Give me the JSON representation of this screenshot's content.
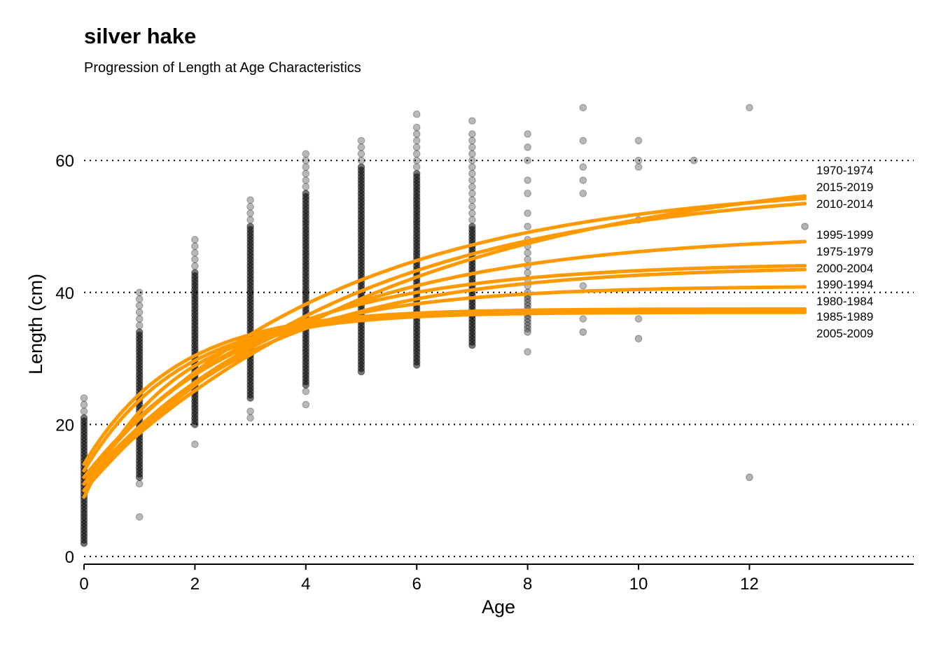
{
  "chart_data": {
    "type": "scatter",
    "title": "silver hake",
    "subtitle": "Progression of Length at Age Characteristics",
    "xlabel": "Age",
    "ylabel": "Length (cm)",
    "xlim": [
      0,
      15
    ],
    "ylim": [
      0,
      70
    ],
    "xticks": [
      0,
      2,
      4,
      6,
      8,
      10,
      12
    ],
    "yticks": [
      0,
      20,
      40,
      60
    ],
    "grid": "horizontal dotted",
    "colors": {
      "curve": "#FF9900",
      "point": "#000000"
    },
    "points": [
      {
        "age": 0,
        "min": 2,
        "max": 21,
        "faint": [
          22,
          23,
          24
        ]
      },
      {
        "age": 1,
        "min": 12,
        "max": 34,
        "faint": [
          6,
          11,
          35,
          36,
          37,
          38,
          39,
          40
        ]
      },
      {
        "age": 2,
        "min": 20,
        "max": 43,
        "faint": [
          17,
          44,
          45,
          46,
          47,
          48
        ]
      },
      {
        "age": 3,
        "min": 24,
        "max": 50,
        "faint": [
          21,
          22,
          51,
          52,
          53,
          54
        ]
      },
      {
        "age": 4,
        "min": 26,
        "max": 55,
        "faint": [
          23,
          25,
          56,
          57,
          58,
          59,
          60,
          61
        ]
      },
      {
        "age": 5,
        "min": 28,
        "max": 59,
        "faint": [
          60,
          61,
          62,
          63
        ]
      },
      {
        "age": 6,
        "min": 29,
        "max": 58,
        "faint": [
          59,
          60,
          61,
          62,
          63,
          64,
          65,
          67
        ]
      },
      {
        "age": 7,
        "min": 32,
        "max": 50,
        "faint": [
          51,
          52,
          53,
          54,
          55,
          56,
          57,
          58,
          59,
          60,
          61,
          62,
          63,
          64,
          66
        ]
      },
      {
        "age": 8,
        "min": 34,
        "max": 40,
        "faint": [
          31,
          41,
          42,
          43,
          44,
          45,
          46,
          47,
          48,
          50,
          52,
          55,
          57,
          60,
          62,
          64
        ]
      },
      {
        "age": 9,
        "min": 34,
        "max": 34,
        "faint": [
          36,
          41,
          55,
          57,
          59,
          63,
          68
        ]
      },
      {
        "age": 10,
        "min": 33,
        "max": 33,
        "faint": [
          36,
          51,
          59,
          60,
          63
        ]
      },
      {
        "age": 11,
        "min": 60,
        "max": 60,
        "faint": []
      },
      {
        "age": 12,
        "min": 12,
        "max": 12,
        "faint": [
          68
        ]
      },
      {
        "age": 13,
        "min": 50,
        "max": 50,
        "faint": []
      }
    ],
    "series": [
      {
        "name": "1970-1974",
        "linf": 60.0,
        "k": 0.17,
        "l0": 11
      },
      {
        "name": "2015-2019",
        "linf": 56.8,
        "k": 0.22,
        "l0": 12
      },
      {
        "name": "2010-2014",
        "linf": 56.5,
        "k": 0.21,
        "l0": 10
      },
      {
        "name": "1995-1999",
        "linf": 49.0,
        "k": 0.26,
        "l0": 11
      },
      {
        "name": "1975-1979",
        "linf": 44.5,
        "k": 0.33,
        "l0": 12
      },
      {
        "name": "2000-2004",
        "linf": 44.0,
        "k": 0.32,
        "l0": 10
      },
      {
        "name": "1990-1994",
        "linf": 41.0,
        "k": 0.4,
        "l0": 11
      },
      {
        "name": "1980-1984",
        "linf": 37.5,
        "k": 0.6,
        "l0": 14
      },
      {
        "name": "1985-1989",
        "linf": 37.3,
        "k": 0.58,
        "l0": 13
      },
      {
        "name": "2005-2009",
        "linf": 37.0,
        "k": 0.62,
        "l0": 9
      }
    ]
  }
}
